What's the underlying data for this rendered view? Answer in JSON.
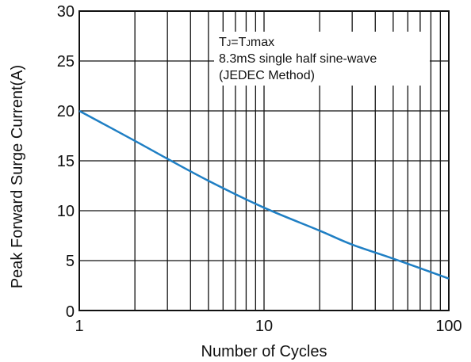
{
  "chart_data": {
    "type": "line",
    "x_scale": "log",
    "xlim": [
      1,
      100
    ],
    "ylim": [
      0,
      30
    ],
    "x_ticks": [
      "1",
      "10",
      "100"
    ],
    "y_ticks": [
      "0",
      "5",
      "10",
      "15",
      "20",
      "25",
      "30"
    ],
    "xlabel": "Number of Cycles",
    "ylabel": "Peak Forward Surge Current(A)",
    "annotation": {
      "line1_main": "T",
      "line1_sub1": "J",
      "line1_eq": "=T",
      "line1_sub2": "J",
      "line1_end": "max",
      "line2": "8.3mS single half sine-wave",
      "line3": "(JEDEC Method)"
    },
    "grid": true,
    "series": [
      {
        "color": "#1f7fc4",
        "x": [
          1,
          2,
          3,
          5,
          10,
          20,
          30,
          50,
          100
        ],
        "y": [
          20,
          17,
          15.2,
          13,
          10.3,
          8,
          6.6,
          5.2,
          3.2
        ]
      }
    ]
  }
}
